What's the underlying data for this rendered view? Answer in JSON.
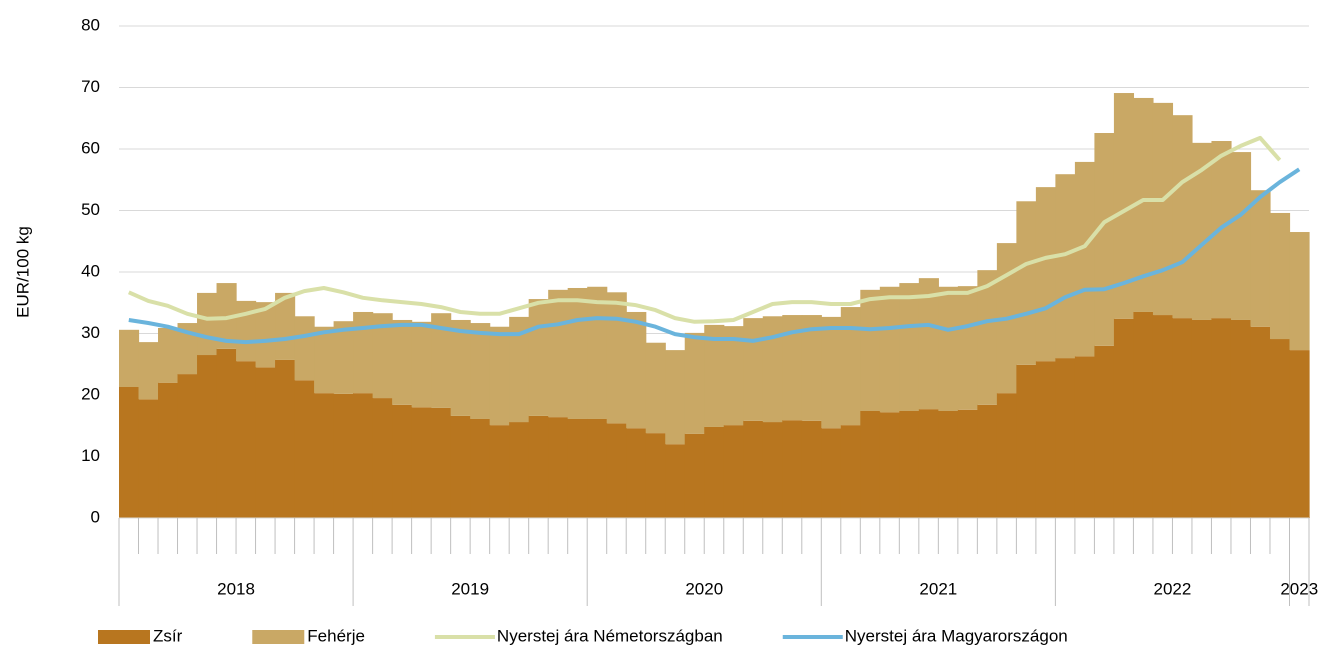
{
  "chart_data": {
    "type": "stacked_bar_line",
    "y_label": "EUR/100 kg",
    "categories": [
      "2018",
      null,
      null,
      null,
      null,
      null,
      null,
      null,
      null,
      null,
      null,
      null,
      "2019",
      null,
      null,
      null,
      null,
      null,
      null,
      null,
      null,
      null,
      null,
      null,
      "2020",
      null,
      null,
      null,
      null,
      null,
      null,
      null,
      null,
      null,
      null,
      null,
      "2021",
      null,
      null,
      null,
      null,
      null,
      null,
      null,
      null,
      null,
      null,
      null,
      "2022",
      null,
      null,
      null,
      null,
      null,
      null,
      null,
      null,
      null,
      null,
      null,
      "2023"
    ],
    "ylim": [
      0,
      80
    ],
    "yticks": [
      0,
      10,
      20,
      30,
      40,
      50,
      60,
      70,
      80
    ],
    "grid": true,
    "legend": "bottom",
    "series": [
      {
        "name": "Zsír",
        "kind": "bar",
        "color": "#b8761f",
        "values": [
          21.3,
          19.3,
          22,
          23.4,
          26.5,
          27.5,
          25.5,
          24.5,
          25.7,
          22.4,
          20.3,
          20.2,
          20.3,
          19.5,
          18.4,
          18,
          17.9,
          16.6,
          16.1,
          15.1,
          15.6,
          16.6,
          16.4,
          16.1,
          16.1,
          15.4,
          14.6,
          13.8,
          12,
          13.7,
          14.8,
          15.1,
          15.8,
          15.6,
          15.9,
          15.8,
          14.6,
          15.1,
          17.4,
          17.2,
          17.4,
          17.7,
          17.4,
          17.6,
          18.4,
          20.3,
          24.9,
          25.5,
          26,
          26.3,
          28,
          32.4,
          33.5,
          33,
          32.5,
          32.2,
          32.5,
          32.2,
          31.1,
          29.1,
          27.3
        ]
      },
      {
        "name": "Fehérje",
        "kind": "bar",
        "color": "#c9a865",
        "values": [
          9.3,
          9.3,
          8.9,
          8.3,
          10.1,
          10.7,
          9.8,
          10.6,
          10.9,
          10.4,
          10.8,
          11.8,
          13.2,
          13.8,
          13.8,
          13.9,
          15.4,
          15.6,
          15.6,
          16,
          17.1,
          19,
          20.7,
          21.3,
          21.5,
          21.3,
          18.9,
          14.7,
          15.3,
          16.4,
          16.6,
          16.1,
          16.7,
          17.2,
          17.1,
          17.2,
          18.1,
          19.2,
          19.7,
          20.4,
          20.8,
          21.3,
          20.2,
          20.1,
          21.9,
          24.4,
          26.6,
          28.3,
          29.9,
          31.6,
          34.6,
          36.7,
          34.8,
          34.5,
          33,
          28.8,
          28.8,
          27.3,
          22.2,
          20.5,
          19.2
        ]
      },
      {
        "name": "Nyerstej ára Németországban",
        "kind": "line",
        "color": "#d9e0a8",
        "values": [
          36.7,
          35.3,
          34.5,
          33.2,
          32.4,
          32.5,
          33.2,
          34,
          35.8,
          36.9,
          37.4,
          36.7,
          35.8,
          35.4,
          35.1,
          34.8,
          34.3,
          33.5,
          33.2,
          33.2,
          34.1,
          35,
          35.4,
          35.4,
          35.1,
          35,
          34.6,
          33.8,
          32.5,
          31.9,
          32,
          32.2,
          33.5,
          34.8,
          35.1,
          35.1,
          34.8,
          34.8,
          35.6,
          35.9,
          35.9,
          36.1,
          36.6,
          36.6,
          37.7,
          39.5,
          41.3,
          42.3,
          42.9,
          44.2,
          48.1,
          49.9,
          51.7,
          51.7,
          54.6,
          56.6,
          58.9,
          60.5,
          61.8,
          58.2,
          null
        ]
      },
      {
        "name": "Nyerstej ára Magyarországon",
        "kind": "line",
        "color": "#6ab4dc",
        "values": [
          32.2,
          31.7,
          31.1,
          30.2,
          29.4,
          28.8,
          28.6,
          28.8,
          29.1,
          29.6,
          30.2,
          30.6,
          30.9,
          31.2,
          31.4,
          31.4,
          30.9,
          30.4,
          30.1,
          29.9,
          29.9,
          31.1,
          31.5,
          32.2,
          32.5,
          32.4,
          31.9,
          31.1,
          29.9,
          29.4,
          29.1,
          29.1,
          28.8,
          29.4,
          30.2,
          30.7,
          30.9,
          30.9,
          30.7,
          30.9,
          31.2,
          31.4,
          30.6,
          31.2,
          32,
          32.4,
          33.2,
          34.1,
          35.9,
          37.1,
          37.2,
          38.2,
          39.3,
          40.3,
          41.6,
          44.4,
          47.2,
          49.3,
          52.2,
          54.6,
          56.7
        ]
      }
    ]
  }
}
